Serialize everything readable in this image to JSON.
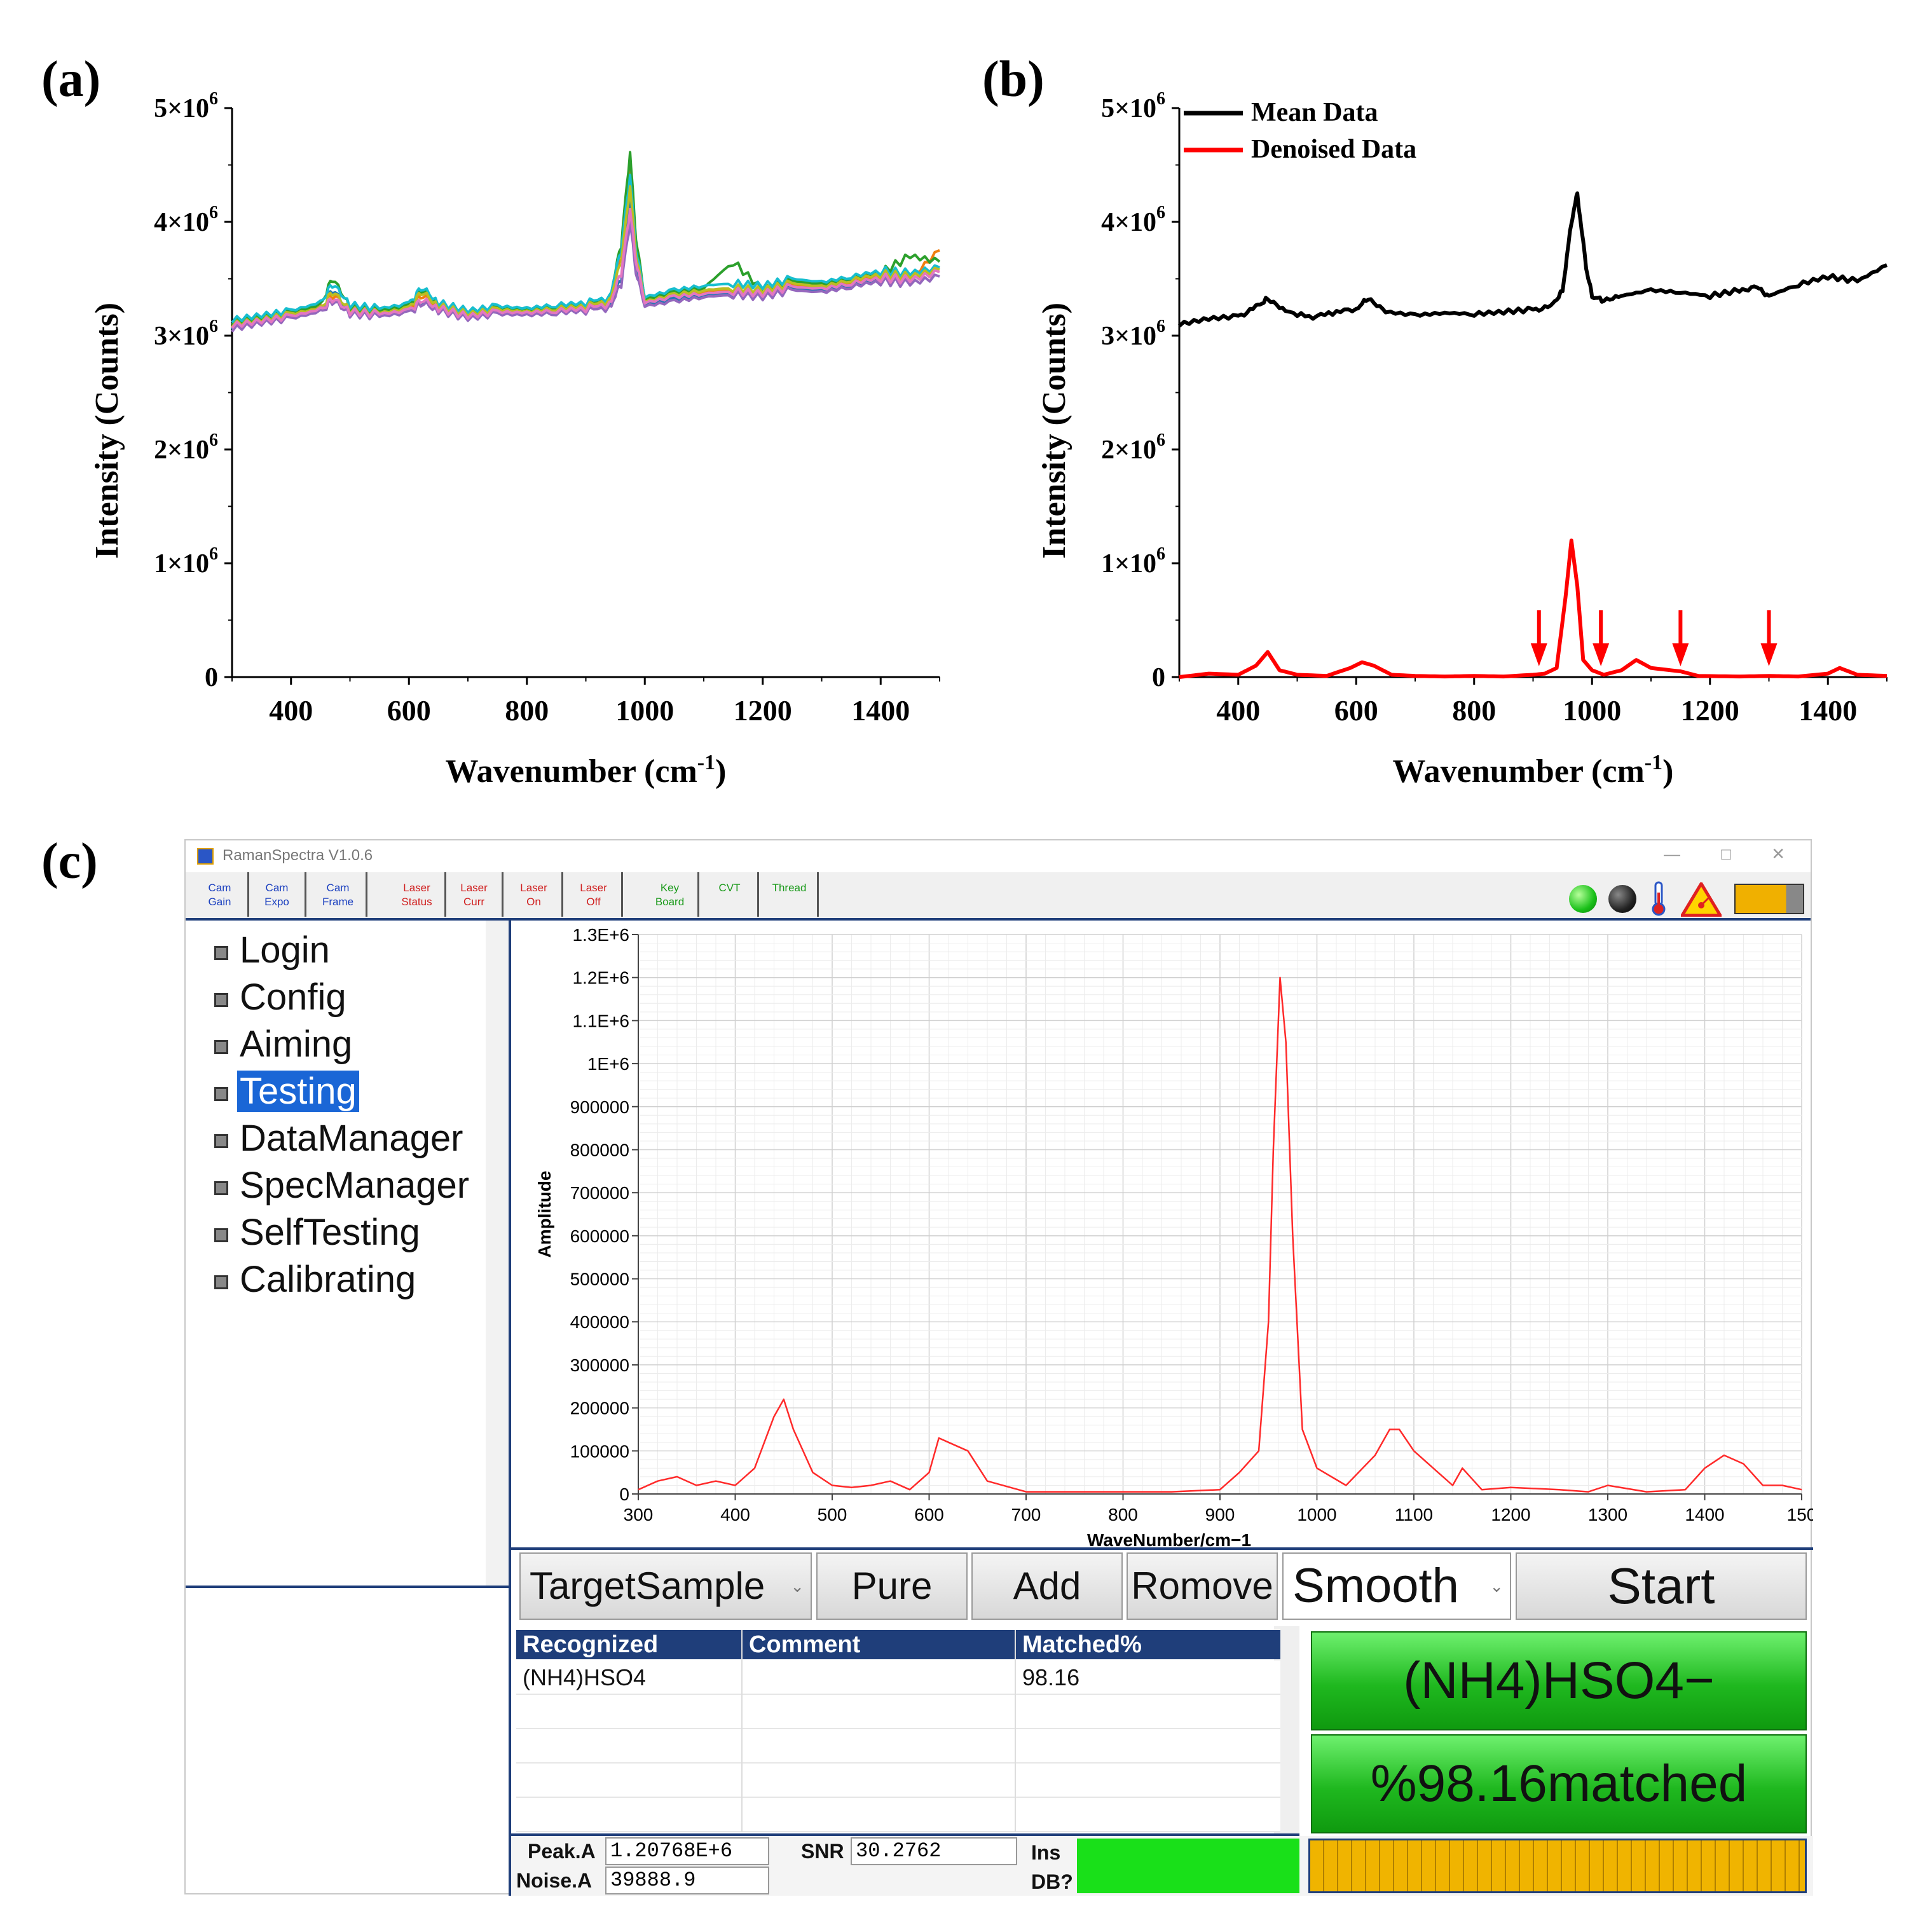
{
  "panels": {
    "a": {
      "label": "(a)",
      "ylabel": "Intensity (Counts)",
      "xlabel": "Wavenumber (cm",
      "xlabel_sup": "-1",
      "xlabel_end": ")",
      "y_ticks": [
        "5×10",
        "4×10",
        "3×10",
        "2×10",
        "1×10",
        "0"
      ],
      "y_tick_exp": "6",
      "x_ticks": [
        "400",
        "600",
        "800",
        "1000",
        "1200",
        "1400"
      ]
    },
    "b": {
      "label": "(b)",
      "ylabel": "Intensity (Counts)",
      "xlabel": "Wavenumber (cm",
      "xlabel_sup": "-1",
      "xlabel_end": ")",
      "y_ticks": [
        "5×10",
        "4×10",
        "3×10",
        "2×10",
        "1×10",
        "0"
      ],
      "y_tick_exp": "6",
      "x_ticks": [
        "400",
        "600",
        "800",
        "1000",
        "1200",
        "1400"
      ],
      "legend": [
        "Mean Data",
        "Denoised Data"
      ]
    },
    "c": {
      "label": "(c)"
    }
  },
  "chart_data": [
    {
      "type": "line",
      "panel": "a",
      "xlim": [
        300,
        1500
      ],
      "ylim": [
        0,
        5000000
      ],
      "x": [
        300,
        350,
        400,
        450,
        470,
        500,
        550,
        600,
        620,
        650,
        700,
        750,
        800,
        850,
        900,
        940,
        960,
        975,
        985,
        1000,
        1050,
        1100,
        1150,
        1200,
        1250,
        1300,
        1350,
        1400,
        1450,
        1500
      ],
      "series": [
        {
          "color": "#f07f0f",
          "values": [
            3100000,
            3150000,
            3180000,
            3250000,
            3350000,
            3230000,
            3200000,
            3230000,
            3350000,
            3250000,
            3180000,
            3220000,
            3200000,
            3230000,
            3250000,
            3300000,
            3700000,
            4500000,
            3800000,
            3300000,
            3350000,
            3380000,
            3400000,
            3380000,
            3450000,
            3420000,
            3480000,
            3520000,
            3500000,
            3750000
          ]
        },
        {
          "color": "#1f77b4",
          "values": [
            3080000,
            3120000,
            3170000,
            3220000,
            3400000,
            3200000,
            3180000,
            3210000,
            3300000,
            3230000,
            3160000,
            3200000,
            3190000,
            3210000,
            3230000,
            3260000,
            3500000,
            4200000,
            3600000,
            3280000,
            3320000,
            3360000,
            3380000,
            3360000,
            3420000,
            3400000,
            3450000,
            3500000,
            3480000,
            3600000
          ]
        },
        {
          "color": "#2ca02c",
          "values": [
            3120000,
            3160000,
            3200000,
            3270000,
            3500000,
            3250000,
            3220000,
            3260000,
            3400000,
            3270000,
            3200000,
            3240000,
            3220000,
            3250000,
            3270000,
            3320000,
            3800000,
            4600000,
            3850000,
            3320000,
            3380000,
            3420000,
            3650000,
            3400000,
            3480000,
            3450000,
            3500000,
            3550000,
            3700000,
            3650000
          ]
        },
        {
          "color": "#9467bd",
          "values": [
            3060000,
            3110000,
            3150000,
            3210000,
            3300000,
            3190000,
            3170000,
            3200000,
            3280000,
            3220000,
            3150000,
            3190000,
            3180000,
            3200000,
            3220000,
            3250000,
            3450000,
            4000000,
            3550000,
            3260000,
            3300000,
            3340000,
            3360000,
            3340000,
            3400000,
            3380000,
            3430000,
            3480000,
            3460000,
            3520000
          ]
        },
        {
          "color": "#17becf",
          "values": [
            3140000,
            3180000,
            3220000,
            3290000,
            3450000,
            3270000,
            3240000,
            3280000,
            3420000,
            3290000,
            3220000,
            3260000,
            3240000,
            3270000,
            3290000,
            3340000,
            3750000,
            4400000,
            3750000,
            3340000,
            3400000,
            3440000,
            3460000,
            3440000,
            3500000,
            3470000,
            3520000,
            3570000,
            3550000,
            3600000
          ]
        },
        {
          "color": "#bcbd22",
          "values": [
            3100000,
            3140000,
            3190000,
            3240000,
            3380000,
            3220000,
            3200000,
            3240000,
            3380000,
            3260000,
            3190000,
            3230000,
            3210000,
            3240000,
            3260000,
            3310000,
            3650000,
            4300000,
            3700000,
            3300000,
            3360000,
            3400000,
            3420000,
            3400000,
            3460000,
            3430000,
            3490000,
            3540000,
            3520000,
            3580000
          ]
        },
        {
          "color": "#e377c2",
          "values": [
            3090000,
            3130000,
            3170000,
            3230000,
            3320000,
            3210000,
            3190000,
            3220000,
            3310000,
            3240000,
            3170000,
            3210000,
            3200000,
            3220000,
            3240000,
            3280000,
            3550000,
            4100000,
            3650000,
            3290000,
            3340000,
            3370000,
            3390000,
            3370000,
            3430000,
            3410000,
            3460000,
            3510000,
            3490000,
            3560000
          ]
        }
      ]
    },
    {
      "type": "line",
      "panel": "b",
      "xlim": [
        300,
        1500
      ],
      "ylim": [
        0,
        5000000
      ],
      "series": [
        {
          "name": "Mean Data",
          "color": "#000000",
          "x": [
            300,
            350,
            400,
            430,
            450,
            480,
            520,
            560,
            600,
            620,
            650,
            700,
            750,
            800,
            850,
            900,
            930,
            950,
            965,
            975,
            990,
            1000,
            1020,
            1050,
            1100,
            1150,
            1200,
            1250,
            1280,
            1300,
            1350,
            1400,
            1450,
            1500
          ],
          "values": [
            3100000,
            3150000,
            3170000,
            3250000,
            3330000,
            3220000,
            3160000,
            3200000,
            3240000,
            3320000,
            3210000,
            3180000,
            3200000,
            3190000,
            3210000,
            3230000,
            3250000,
            3400000,
            4000000,
            4250000,
            3600000,
            3350000,
            3300000,
            3350000,
            3400000,
            3380000,
            3350000,
            3400000,
            3420000,
            3350000,
            3450000,
            3520000,
            3480000,
            3620000
          ]
        },
        {
          "name": "Denoised Data",
          "color": "#ff0000",
          "x": [
            300,
            350,
            400,
            430,
            450,
            470,
            500,
            550,
            590,
            610,
            630,
            660,
            700,
            750,
            800,
            850,
            900,
            920,
            940,
            955,
            965,
            975,
            985,
            1000,
            1020,
            1050,
            1075,
            1100,
            1150,
            1180,
            1250,
            1300,
            1350,
            1400,
            1420,
            1450,
            1500
          ],
          "values": [
            0,
            30000,
            20000,
            100000,
            220000,
            60000,
            20000,
            10000,
            80000,
            130000,
            100000,
            20000,
            10000,
            5000,
            10000,
            5000,
            20000,
            30000,
            80000,
            700000,
            1200000,
            800000,
            150000,
            60000,
            20000,
            60000,
            150000,
            80000,
            50000,
            10000,
            5000,
            10000,
            5000,
            30000,
            80000,
            20000,
            10000
          ]
        }
      ],
      "arrows_at_x": [
        910,
        1015,
        1150,
        1300
      ]
    },
    {
      "type": "line",
      "panel": "c",
      "xlim": [
        300,
        1500
      ],
      "ylim": [
        0,
        1300000
      ],
      "ylabel": "Amplitude",
      "xlabel": "WaveNumber/cm−1",
      "y_ticks": [
        "1.3E+6",
        "1.2E+6",
        "1.1E+6",
        "1E+6",
        "900000",
        "800000",
        "700000",
        "600000",
        "500000",
        "400000",
        "300000",
        "200000",
        "100000",
        "0"
      ],
      "x_ticks": [
        "300",
        "400",
        "500",
        "600",
        "700",
        "800",
        "900",
        "1000",
        "1100",
        "1200",
        "1300",
        "1400",
        "150"
      ],
      "series": [
        {
          "color": "#ff2a2a",
          "x": [
            300,
            320,
            340,
            360,
            380,
            400,
            420,
            440,
            450,
            460,
            480,
            500,
            520,
            540,
            560,
            580,
            600,
            610,
            620,
            640,
            660,
            700,
            760,
            800,
            850,
            900,
            920,
            940,
            950,
            955,
            962,
            968,
            975,
            985,
            1000,
            1030,
            1060,
            1075,
            1085,
            1100,
            1120,
            1140,
            1150,
            1170,
            1200,
            1250,
            1280,
            1300,
            1340,
            1380,
            1400,
            1420,
            1440,
            1460,
            1480,
            1500
          ],
          "values": [
            10000,
            30000,
            40000,
            20000,
            30000,
            20000,
            60000,
            180000,
            220000,
            150000,
            50000,
            20000,
            15000,
            20000,
            30000,
            10000,
            50000,
            130000,
            120000,
            100000,
            30000,
            5000,
            5000,
            5000,
            5000,
            10000,
            50000,
            100000,
            400000,
            800000,
            1200000,
            1050000,
            600000,
            150000,
            60000,
            20000,
            90000,
            150000,
            150000,
            100000,
            60000,
            20000,
            60000,
            10000,
            15000,
            10000,
            5000,
            20000,
            5000,
            10000,
            60000,
            90000,
            70000,
            20000,
            20000,
            10000
          ]
        }
      ]
    }
  ],
  "app": {
    "title": "RamanSpectra V1.0.6",
    "window_controls": [
      "—",
      "□",
      "✕"
    ],
    "toolbar": [
      {
        "line1": "Cam",
        "line2": "Gain",
        "color": "#1a3fbf"
      },
      {
        "line1": "Cam",
        "line2": "Expo",
        "color": "#1a3fbf"
      },
      {
        "line1": "Cam",
        "line2": "Frame",
        "color": "#1a3fbf"
      },
      {
        "line1": "Laser",
        "line2": "Status",
        "color": "#d02020"
      },
      {
        "line1": "Laser",
        "line2": "Curr",
        "color": "#d02020"
      },
      {
        "line1": "Laser",
        "line2": "On",
        "color": "#d02020"
      },
      {
        "line1": "Laser",
        "line2": "Off",
        "color": "#d02020"
      },
      {
        "line1": "Key",
        "line2": "Board",
        "color": "#1a9a1a"
      },
      {
        "line1": "CVT",
        "line2": "",
        "color": "#1a9a1a"
      },
      {
        "line1": "Thread",
        "line2": "",
        "color": "#1a9a1a"
      }
    ],
    "status_icons": [
      "green-light-icon",
      "dark-light-icon",
      "thermometer-icon",
      "laser-warning-icon",
      "battery-icon"
    ],
    "menu": [
      "Login",
      "Config",
      "Aiming",
      "Testing",
      "DataManager",
      "SpecManager",
      "SelfTesting",
      "Calibrating"
    ],
    "menu_selected": "Testing",
    "controls": {
      "target_select": "TargetSample",
      "pure": "Pure",
      "add": "Add",
      "remove": "Romove",
      "smooth_select": "Smooth",
      "start": "Start"
    },
    "table": {
      "headers": [
        "Recognized",
        "Comment",
        "Matched%"
      ],
      "rows": [
        [
          "(NH4)HSO4",
          "",
          "98.16"
        ]
      ]
    },
    "result": {
      "name": "(NH4)HSO4−",
      "match": "%98.16matched"
    },
    "stats": {
      "peak_label": "Peak.A",
      "peak_value": "1.20768E+6",
      "noise_label": "Noise.A",
      "noise_value": "39888.9",
      "snr_label": "SNR",
      "snr_value": "30.2762",
      "ins_label": "Ins",
      "db_label": "DB?"
    }
  }
}
